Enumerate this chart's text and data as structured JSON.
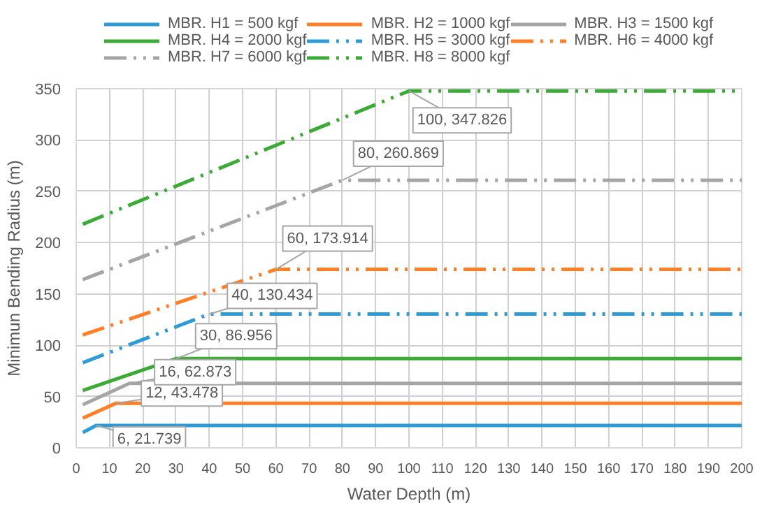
{
  "chart_data": {
    "type": "line",
    "xlabel": "Water Depth (m)",
    "ylabel": "Minimun Bending Radius (m)",
    "xlim": [
      0,
      200
    ],
    "xticks": [
      0,
      10,
      20,
      30,
      40,
      50,
      60,
      70,
      80,
      90,
      100,
      110,
      120,
      130,
      140,
      150,
      160,
      170,
      180,
      190,
      200
    ],
    "ylim": [
      0,
      350
    ],
    "yticks": [
      0,
      50,
      100,
      150,
      200,
      250,
      300,
      350
    ],
    "grid": true,
    "legend": "top",
    "marker": "none",
    "series": [
      {
        "name": "MBR. H1 = 500 kgf",
        "color": "#2e9bd6",
        "line_style": "solid",
        "x": [
          2,
          6,
          200
        ],
        "values": [
          15,
          21.739,
          21.739
        ]
      },
      {
        "name": "MBR. H2 = 1000 kgf",
        "color": "#ff7f27",
        "line_style": "solid",
        "x": [
          2,
          12,
          200
        ],
        "values": [
          29,
          43.478,
          43.478
        ]
      },
      {
        "name": "MBR. H3 = 1500 kgf",
        "color": "#a5a5a5",
        "line_style": "solid",
        "x": [
          2,
          16,
          200
        ],
        "values": [
          42,
          62.873,
          62.873
        ]
      },
      {
        "name": "MBR. H4 = 2000 kgf",
        "color": "#3bab35",
        "line_style": "solid",
        "x": [
          2,
          30,
          200
        ],
        "values": [
          56,
          86.956,
          86.956
        ]
      },
      {
        "name": "MBR. H5 = 3000 kgf",
        "color": "#2e9bd6",
        "line_style": "dashed",
        "x": [
          2,
          40,
          200
        ],
        "values": [
          83,
          130.434,
          130.434
        ]
      },
      {
        "name": "MBR. H6 = 4000 kgf",
        "color": "#ff7f27",
        "line_style": "dashed",
        "x": [
          2,
          60,
          200
        ],
        "values": [
          110,
          173.914,
          173.914
        ]
      },
      {
        "name": "MBR. H7 = 6000 kgf",
        "color": "#a5a5a5",
        "line_style": "dashed",
        "x": [
          2,
          80,
          200
        ],
        "values": [
          164,
          260.869,
          260.869
        ]
      },
      {
        "name": "MBR. H8 = 8000 kgf",
        "color": "#3bab35",
        "line_style": "dashed",
        "x": [
          2,
          100,
          200
        ],
        "values": [
          218,
          347.826,
          347.826
        ]
      }
    ],
    "annotations": [
      {
        "text": "6, 21.739",
        "x": 6,
        "y": 21.739
      },
      {
        "text": "12, 43.478",
        "x": 12,
        "y": 43.478
      },
      {
        "text": "16, 62.873",
        "x": 16,
        "y": 62.873
      },
      {
        "text": "30, 86.956",
        "x": 30,
        "y": 86.956
      },
      {
        "text": "40, 130.434",
        "x": 40,
        "y": 130.434
      },
      {
        "text": "60, 173.914",
        "x": 60,
        "y": 173.914
      },
      {
        "text": "80, 260.869",
        "x": 80,
        "y": 260.869
      },
      {
        "text": "100, 347.826",
        "x": 100,
        "y": 347.826
      }
    ]
  }
}
